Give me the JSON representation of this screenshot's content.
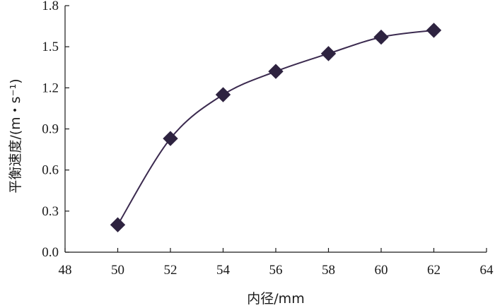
{
  "chart_data": {
    "type": "line",
    "xlabel": "内径/mm",
    "ylabel": "平衡速度/(m・s⁻¹)",
    "xlim": [
      48,
      64
    ],
    "ylim": [
      0.0,
      1.8
    ],
    "xticks": [
      "48",
      "50",
      "52",
      "54",
      "56",
      "58",
      "60",
      "62",
      "64"
    ],
    "yticks": [
      "0.0",
      "0.3",
      "0.6",
      "0.9",
      "1.2",
      "1.5",
      "1.8"
    ],
    "grid": false,
    "series": [
      {
        "x": [
          50,
          52,
          54,
          56,
          58,
          60,
          62
        ],
        "y": [
          0.2,
          0.83,
          1.15,
          1.32,
          1.45,
          1.57,
          1.62
        ],
        "marker": "diamond",
        "color": "#2e2340"
      }
    ]
  }
}
